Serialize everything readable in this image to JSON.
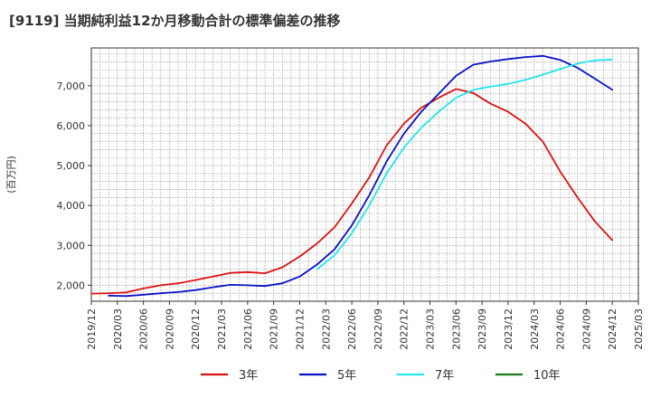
{
  "title": "[9119]  当期純利益12か月移動合計の標準偏差の推移",
  "chart_data": {
    "type": "line",
    "title": "[9119]  当期純利益12か月移動合計の標準偏差の推移",
    "ylabel": "(百万円)",
    "xlabel": "",
    "ylim": [
      1600,
      7950
    ],
    "yticks": [
      2000,
      3000,
      4000,
      5000,
      6000,
      7000
    ],
    "ytick_labels": [
      "2,000",
      "3,000",
      "4,000",
      "5,000",
      "6,000",
      "7,000"
    ],
    "xlim": [
      "2019-12",
      "2025-03"
    ],
    "xtick_labels": [
      "2019/12",
      "2020/03",
      "2020/06",
      "2020/09",
      "2020/12",
      "2021/03",
      "2021/06",
      "2021/09",
      "2021/12",
      "2022/03",
      "2022/06",
      "2022/09",
      "2022/12",
      "2023/03",
      "2023/06",
      "2023/09",
      "2023/12",
      "2024/03",
      "2024/06",
      "2024/09",
      "2024/12",
      "2025/03"
    ],
    "grid": true,
    "legend_position": "bottom",
    "series": [
      {
        "name": "3年",
        "color": "#dd1111",
        "x": [
          "2019-12",
          "2020-02",
          "2020-04",
          "2020-06",
          "2020-08",
          "2020-10",
          "2020-12",
          "2021-02",
          "2021-04",
          "2021-06",
          "2021-08",
          "2021-10",
          "2021-12",
          "2022-02",
          "2022-04",
          "2022-06",
          "2022-08",
          "2022-10",
          "2022-12",
          "2023-02",
          "2023-04",
          "2023-06",
          "2023-08",
          "2023-10",
          "2023-12",
          "2024-02",
          "2024-04",
          "2024-06",
          "2024-08",
          "2024-10",
          "2024-12"
        ],
        "values": [
          1790,
          1800,
          1820,
          1920,
          2000,
          2050,
          2130,
          2220,
          2310,
          2330,
          2300,
          2450,
          2720,
          3050,
          3450,
          4050,
          4700,
          5500,
          6050,
          6450,
          6700,
          6920,
          6820,
          6550,
          6350,
          6050,
          5600,
          4850,
          4200,
          3600,
          3130
        ]
      },
      {
        "name": "5年",
        "color": "#0a10c8",
        "x": [
          "2020-02",
          "2020-04",
          "2020-06",
          "2020-08",
          "2020-10",
          "2020-12",
          "2021-02",
          "2021-04",
          "2021-06",
          "2021-08",
          "2021-10",
          "2021-12",
          "2022-02",
          "2022-04",
          "2022-06",
          "2022-08",
          "2022-10",
          "2022-12",
          "2023-02",
          "2023-04",
          "2023-06",
          "2023-08",
          "2023-10",
          "2023-12",
          "2024-02",
          "2024-04",
          "2024-06",
          "2024-08",
          "2024-10",
          "2024-12"
        ],
        "values": [
          1740,
          1730,
          1760,
          1800,
          1830,
          1880,
          1950,
          2010,
          2000,
          1980,
          2050,
          2220,
          2520,
          2900,
          3500,
          4250,
          5100,
          5800,
          6350,
          6800,
          7250,
          7530,
          7610,
          7670,
          7720,
          7750,
          7650,
          7450,
          7180,
          6900
        ]
      },
      {
        "name": "7年",
        "color": "#22e6f0",
        "x": [
          "2022-02",
          "2022-04",
          "2022-06",
          "2022-08",
          "2022-10",
          "2022-12",
          "2023-02",
          "2023-04",
          "2023-06",
          "2023-08",
          "2023-10",
          "2023-12",
          "2024-02",
          "2024-04",
          "2024-06",
          "2024-08",
          "2024-10",
          "2024-12"
        ],
        "values": [
          2400,
          2750,
          3300,
          4000,
          4800,
          5450,
          5950,
          6350,
          6700,
          6900,
          6980,
          7050,
          7150,
          7280,
          7420,
          7560,
          7640,
          7660
        ]
      },
      {
        "name": "10年",
        "color": "#1a7a1a",
        "x": [],
        "values": []
      }
    ]
  }
}
